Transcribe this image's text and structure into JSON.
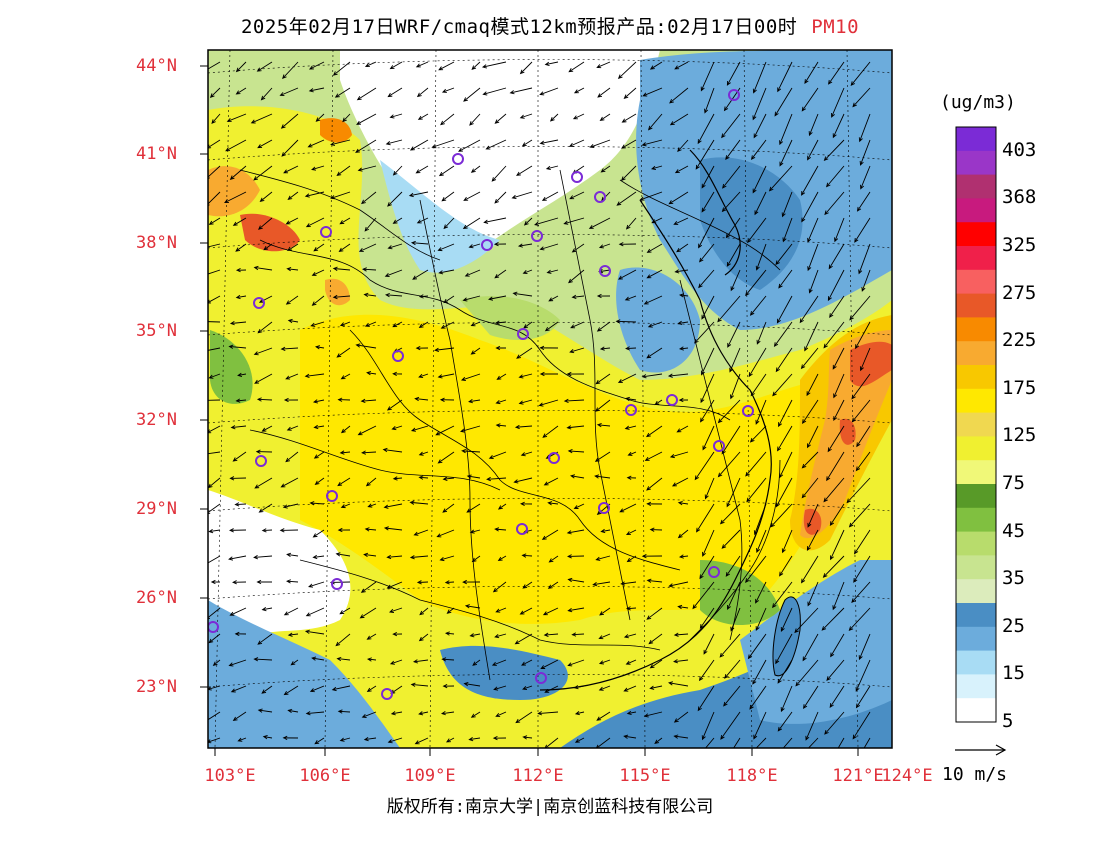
{
  "title": {
    "main": "2025年02月17日WRF/cmaq模式12km预报产品:02月17日00时",
    "pollutant": "PM10",
    "pollutant_color": "#e0303a"
  },
  "axes": {
    "lat_labels": [
      "44°N",
      "41°N",
      "38°N",
      "35°N",
      "32°N",
      "29°N",
      "26°N",
      "23°N"
    ],
    "lon_labels": [
      "103°E",
      "106°E",
      "109°E",
      "112°E",
      "115°E",
      "118°E",
      "121°E",
      "124°E"
    ],
    "label_color": "#e0303a"
  },
  "colorbar": {
    "unit": "(ug/m3)",
    "labels": [
      "403",
      "368",
      "325",
      "275",
      "225",
      "175",
      "125",
      "75",
      "45",
      "35",
      "25",
      "15",
      "5"
    ],
    "colors": [
      "#7b2bd6",
      "#9a36c8",
      "#b03070",
      "#c81a7e",
      "#ff0000",
      "#f0204a",
      "#f86060",
      "#e85828",
      "#f88a00",
      "#f8aa30",
      "#f8c800",
      "#ffe800",
      "#f0d850",
      "#f0f030",
      "#f0f878",
      "#589a28",
      "#80c040",
      "#b8dc6c",
      "#c8e490",
      "#dcecbc",
      "#4a8ec4",
      "#6cacdc",
      "#a8dcf4",
      "#d8f2fc",
      "#ffffff"
    ]
  },
  "wind": {
    "reference_label": "10 m/s"
  },
  "copyright": "版权所有:南京大学|南京创蓝科技有限公司",
  "icons": [
    "wind-vector-arrow",
    "city-station-marker"
  ]
}
